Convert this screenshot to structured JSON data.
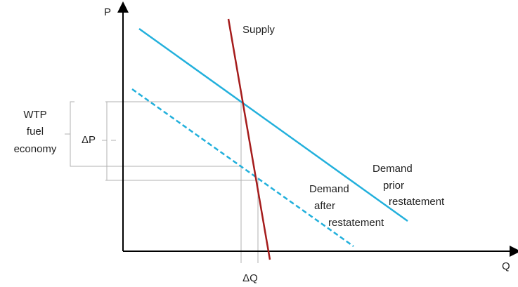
{
  "axes": {
    "y_label": "P",
    "x_label": "Q"
  },
  "curves": {
    "supply": "Supply",
    "demand_prior": [
      "Demand",
      "prior",
      "restatement"
    ],
    "demand_after": [
      "Demand",
      "after",
      "restatement"
    ]
  },
  "annotations": {
    "wtp": [
      "WTP",
      "fuel",
      "economy"
    ],
    "delta_p": "ΔP",
    "delta_q": "ΔQ"
  }
}
